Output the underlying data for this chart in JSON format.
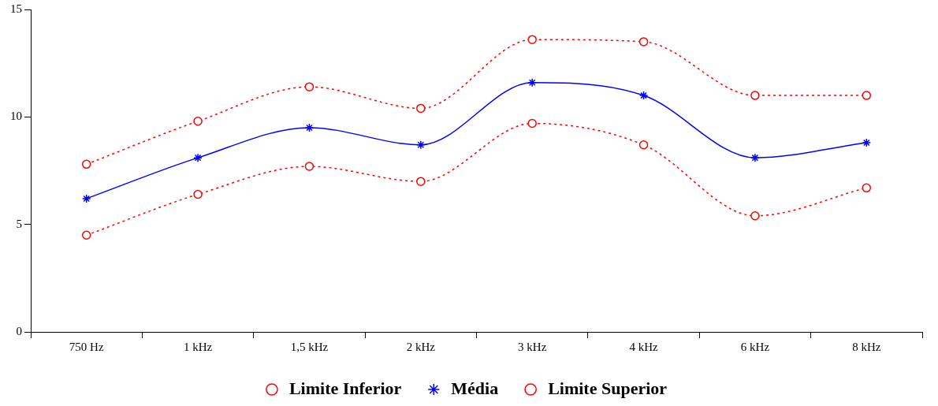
{
  "chart_data": {
    "type": "line",
    "categories": [
      "750 Hz",
      "1 kHz",
      "1,5 kHz",
      "2 kHz",
      "3 kHz",
      "4 kHz",
      "6 kHz",
      "8 kHz"
    ],
    "series": [
      {
        "name": "Limite Inferior",
        "color": "#ff0000",
        "marker": "circle",
        "line_style": "dotted",
        "values": [
          4.5,
          6.4,
          7.7,
          7.0,
          9.7,
          8.7,
          5.4,
          6.7
        ]
      },
      {
        "name": "Média",
        "color": "#0000ff",
        "marker": "cross",
        "line_style": "solid",
        "values": [
          6.2,
          8.1,
          9.5,
          8.7,
          11.6,
          11.0,
          8.1,
          8.8
        ]
      },
      {
        "name": "Limite Superior",
        "color": "#ff0000",
        "marker": "circle",
        "line_style": "dotted",
        "values": [
          7.8,
          9.8,
          11.4,
          10.4,
          13.6,
          13.5,
          11.0,
          11.0
        ]
      }
    ],
    "ylim": [
      0,
      15
    ],
    "yticks": [
      0,
      5,
      10,
      15
    ],
    "grid": false,
    "legend": "bottom"
  }
}
